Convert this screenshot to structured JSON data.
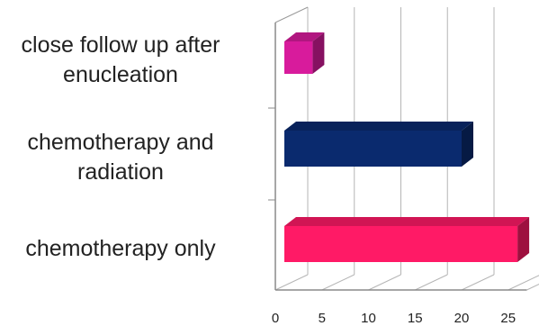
{
  "chart_data": {
    "type": "bar",
    "orientation": "horizontal",
    "style": "3d",
    "categories": [
      "close follow up after\nenucleation",
      "chemotherapy and\nradiation",
      "chemotherapy only"
    ],
    "values": [
      4,
      20,
      26
    ],
    "colors": [
      "#d81b9c",
      "#0a2a6e",
      "#ff1a66"
    ],
    "x_ticks": [
      "0",
      "5",
      "10",
      "15",
      "20",
      "25"
    ],
    "xlim": [
      0,
      27
    ],
    "grid": true,
    "legend": "none"
  }
}
